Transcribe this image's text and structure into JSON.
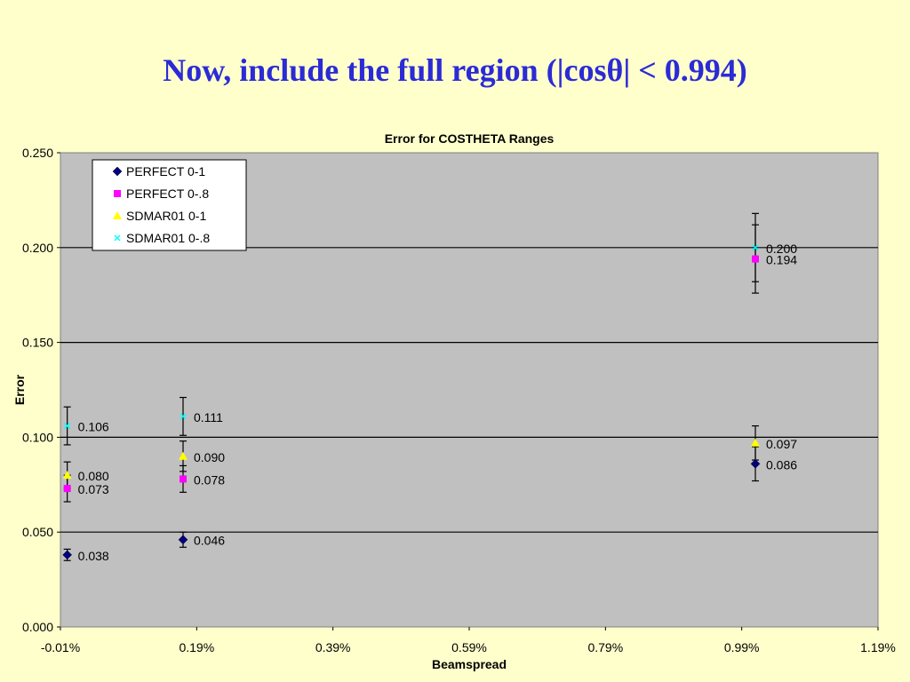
{
  "slide": {
    "title": "Now, include the full region (|cosθ| < 0.994)"
  },
  "chart_data": {
    "type": "scatter",
    "title": "Error for COSTHETA Ranges",
    "xlabel": "Beamspread",
    "ylabel": "Error",
    "xlim": [
      -0.0001,
      0.0119
    ],
    "ylim": [
      0,
      0.25
    ],
    "x_ticks": [
      "-0.01%",
      "0.19%",
      "0.39%",
      "0.59%",
      "0.79%",
      "0.99%",
      "1.19%"
    ],
    "y_ticks": [
      "0.000",
      "0.050",
      "0.100",
      "0.150",
      "0.200",
      "0.250"
    ],
    "grid": true,
    "legend_position": "top-left",
    "colors": {
      "plot_bg": "#c0c0c0",
      "perfect_0_1": "#000080",
      "perfect_0_8": "#ff00ff",
      "sdmar01_0_1": "#ffff00",
      "sdmar01_0_8": "#00ffff"
    },
    "series": [
      {
        "name": "PERFECT 0-1",
        "marker": "diamond",
        "color": "#000080",
        "x": [
          0.0,
          0.0017,
          0.0101
        ],
        "y": [
          0.038,
          0.046,
          0.086
        ],
        "err": [
          0.003,
          0.004,
          0.009
        ],
        "labels": [
          "0.038",
          "0.046",
          "0.086"
        ],
        "label_dy": [
          6,
          6,
          6
        ]
      },
      {
        "name": "PERFECT 0-.8",
        "marker": "square",
        "color": "#ff00ff",
        "x": [
          0.0,
          0.0017,
          0.0101
        ],
        "y": [
          0.073,
          0.078,
          0.194
        ],
        "err": [
          0.007,
          0.007,
          0.018
        ],
        "labels": [
          "0.073",
          "0.078",
          "0.194"
        ],
        "label_dy": [
          6,
          6,
          6
        ]
      },
      {
        "name": "SDMAR01 0-1",
        "marker": "triangle",
        "color": "#ffff00",
        "x": [
          0.0,
          0.0017,
          0.0101
        ],
        "y": [
          0.08,
          0.09,
          0.097
        ],
        "err": [
          0.007,
          0.008,
          0.009
        ],
        "labels": [
          "0.080",
          "0.090",
          "0.097"
        ],
        "label_dy": [
          6,
          6,
          6
        ]
      },
      {
        "name": "SDMAR01 0-.8",
        "marker": "x",
        "color": "#00ffff",
        "x": [
          0.0,
          0.0017,
          0.0101
        ],
        "y": [
          0.106,
          0.111,
          0.2
        ],
        "err": [
          0.01,
          0.01,
          0.018
        ],
        "labels": [
          "0.106",
          "0.111",
          "0.200"
        ],
        "label_dy": [
          6,
          6,
          6
        ]
      }
    ]
  }
}
